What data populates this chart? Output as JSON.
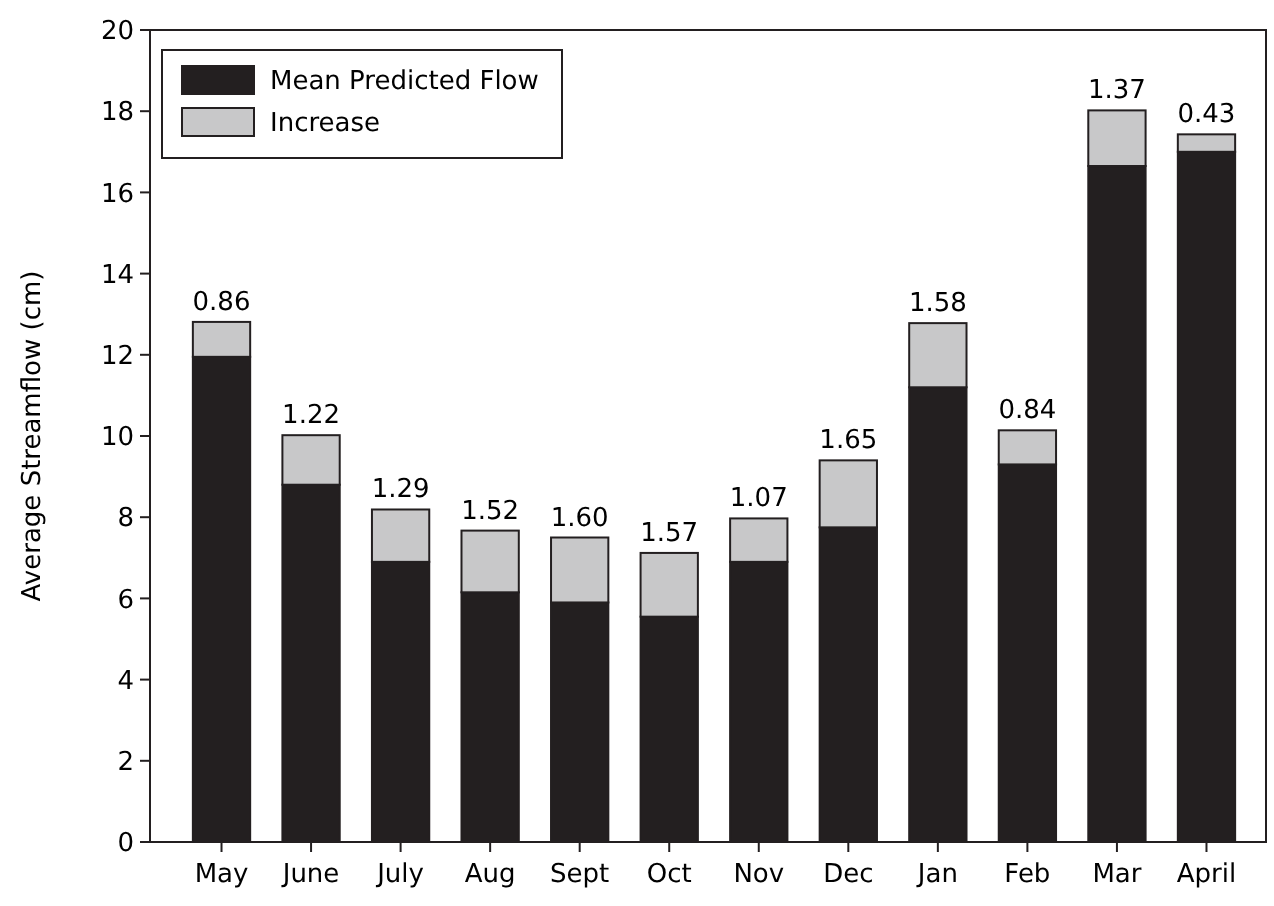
{
  "chart_data": {
    "type": "bar",
    "stacked": true,
    "ylabel": "Average Streamflow (cm)",
    "categories": [
      "May",
      "June",
      "July",
      "Aug",
      "Sept",
      "Oct",
      "Nov",
      "Dec",
      "Jan",
      "Feb",
      "Mar",
      "April"
    ],
    "series": [
      {
        "name": "Mean Predicted Flow",
        "color": "#231f20",
        "values": [
          11.95,
          8.8,
          6.9,
          6.15,
          5.9,
          5.55,
          6.9,
          7.75,
          11.2,
          9.3,
          16.65,
          17.0
        ]
      },
      {
        "name": "Increase",
        "color": "#c8c8c9",
        "values": [
          0.86,
          1.22,
          1.29,
          1.52,
          1.6,
          1.57,
          1.07,
          1.65,
          1.58,
          0.84,
          1.37,
          0.43
        ],
        "value_labels": [
          "0.86",
          "1.22",
          "1.29",
          "1.52",
          "1.60",
          "1.57",
          "1.07",
          "1.65",
          "1.58",
          "0.84",
          "1.37",
          "0.43"
        ]
      }
    ],
    "ylim": [
      0,
      20
    ],
    "yticks": [
      0,
      2,
      4,
      6,
      8,
      10,
      12,
      14,
      16,
      18,
      20
    ],
    "grid": false,
    "legend": "top left"
  }
}
